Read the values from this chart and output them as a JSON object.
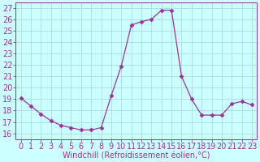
{
  "x": [
    0,
    1,
    2,
    3,
    4,
    5,
    6,
    7,
    8,
    9,
    10,
    11,
    12,
    13,
    14,
    15,
    16,
    17,
    18,
    19,
    20,
    21,
    22,
    23
  ],
  "y": [
    19.1,
    18.4,
    17.7,
    17.1,
    16.7,
    16.5,
    16.3,
    16.3,
    16.5,
    19.3,
    21.9,
    25.5,
    25.8,
    26.0,
    26.8,
    26.8,
    21.0,
    19.0,
    17.6,
    17.6,
    17.6,
    18.6,
    18.8,
    18.5
  ],
  "line_color": "#993399",
  "marker": "D",
  "marker_size": 2.5,
  "xlabel": "Windchill (Refroidissement éolien,°C)",
  "ylabel_ticks": [
    16,
    17,
    18,
    19,
    20,
    21,
    22,
    23,
    24,
    25,
    26,
    27
  ],
  "xtick_labels": [
    "0",
    "1",
    "2",
    "3",
    "4",
    "5",
    "6",
    "7",
    "8",
    "9",
    "10",
    "11",
    "12",
    "13",
    "14",
    "15",
    "16",
    "17",
    "18",
    "19",
    "20",
    "21",
    "22",
    "23"
  ],
  "ylim": [
    15.5,
    27.5
  ],
  "xlim": [
    -0.5,
    23.5
  ],
  "bg_color": "#ccffff",
  "grid_color": "#aadddd",
  "xlabel_color": "#993399",
  "tick_color": "#993399",
  "font_size_xlabel": 7,
  "font_size_ticks": 7,
  "linewidth": 0.9
}
